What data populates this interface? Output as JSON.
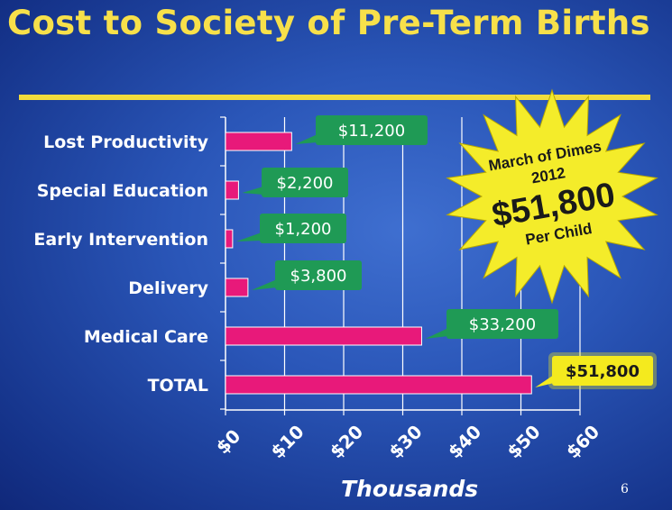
{
  "slide": {
    "title": "Cost to Society of Pre-Term Births",
    "page_number": "6"
  },
  "starburst": {
    "line1": "March of Dimes",
    "line2": "2012",
    "amount": "$51,800",
    "line4": "Per Child",
    "fill": "#f4ec2a"
  },
  "chart_data": {
    "type": "bar",
    "orientation": "horizontal",
    "categories": [
      "Lost Productivity",
      "Special Education",
      "Early Intervention",
      "Delivery",
      "Medical Care",
      "TOTAL"
    ],
    "values": [
      11.2,
      2.2,
      1.2,
      3.8,
      33.2,
      51.8
    ],
    "data_labels": [
      "$11,200",
      "$2,200",
      "$1,200",
      "$3,800",
      "$33,200",
      "$51,800"
    ],
    "xlabel": "Thousands",
    "x_ticks": [
      "$0",
      "$10",
      "$20",
      "$30",
      "$40",
      "$50",
      "$60"
    ],
    "xlim": [
      0,
      60
    ],
    "grid": true,
    "colors": {
      "bar": "#e8197a",
      "callout": "#1f9a55",
      "callout_total": "#f4ea1e",
      "grid": "#ffffff"
    }
  }
}
